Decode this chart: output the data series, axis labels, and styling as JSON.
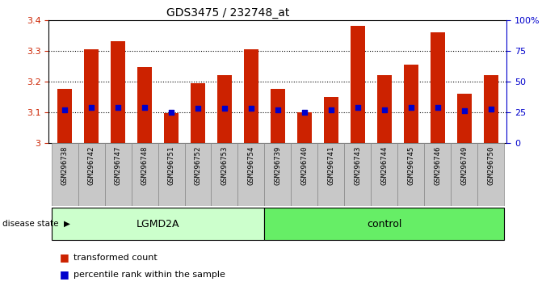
{
  "title": "GDS3475 / 232748_at",
  "samples": [
    "GSM296738",
    "GSM296742",
    "GSM296747",
    "GSM296748",
    "GSM296751",
    "GSM296752",
    "GSM296753",
    "GSM296754",
    "GSM296739",
    "GSM296740",
    "GSM296741",
    "GSM296743",
    "GSM296744",
    "GSM296745",
    "GSM296746",
    "GSM296749",
    "GSM296750"
  ],
  "bar_values": [
    3.175,
    3.305,
    3.33,
    3.248,
    3.097,
    3.195,
    3.22,
    3.305,
    3.175,
    3.1,
    3.15,
    3.38,
    3.22,
    3.255,
    3.36,
    3.16,
    3.22
  ],
  "dot_values": [
    3.108,
    3.116,
    3.116,
    3.116,
    3.1,
    3.112,
    3.112,
    3.112,
    3.108,
    3.1,
    3.107,
    3.116,
    3.107,
    3.115,
    3.115,
    3.105,
    3.11
  ],
  "group_labels": [
    "LGMD2A",
    "control"
  ],
  "group_counts": [
    8,
    9
  ],
  "group_colors": [
    "#ccffcc",
    "#66ee66"
  ],
  "bar_color": "#cc2200",
  "dot_color": "#0000cc",
  "ymin": 3.0,
  "ymax": 3.4,
  "yticks_left": [
    3.0,
    3.1,
    3.2,
    3.3,
    3.4
  ],
  "ytick_labels_left": [
    "3",
    "3.1",
    "3.2",
    "3.3",
    "3.4"
  ],
  "right_yticks": [
    0,
    25,
    50,
    75,
    100
  ],
  "right_yticklabels": [
    "0",
    "25",
    "50",
    "75",
    "100%"
  ],
  "background_color": "#ffffff",
  "bar_width": 0.55,
  "legend_items": [
    "transformed count",
    "percentile rank within the sample"
  ],
  "xtick_bg_color": "#c8c8c8"
}
